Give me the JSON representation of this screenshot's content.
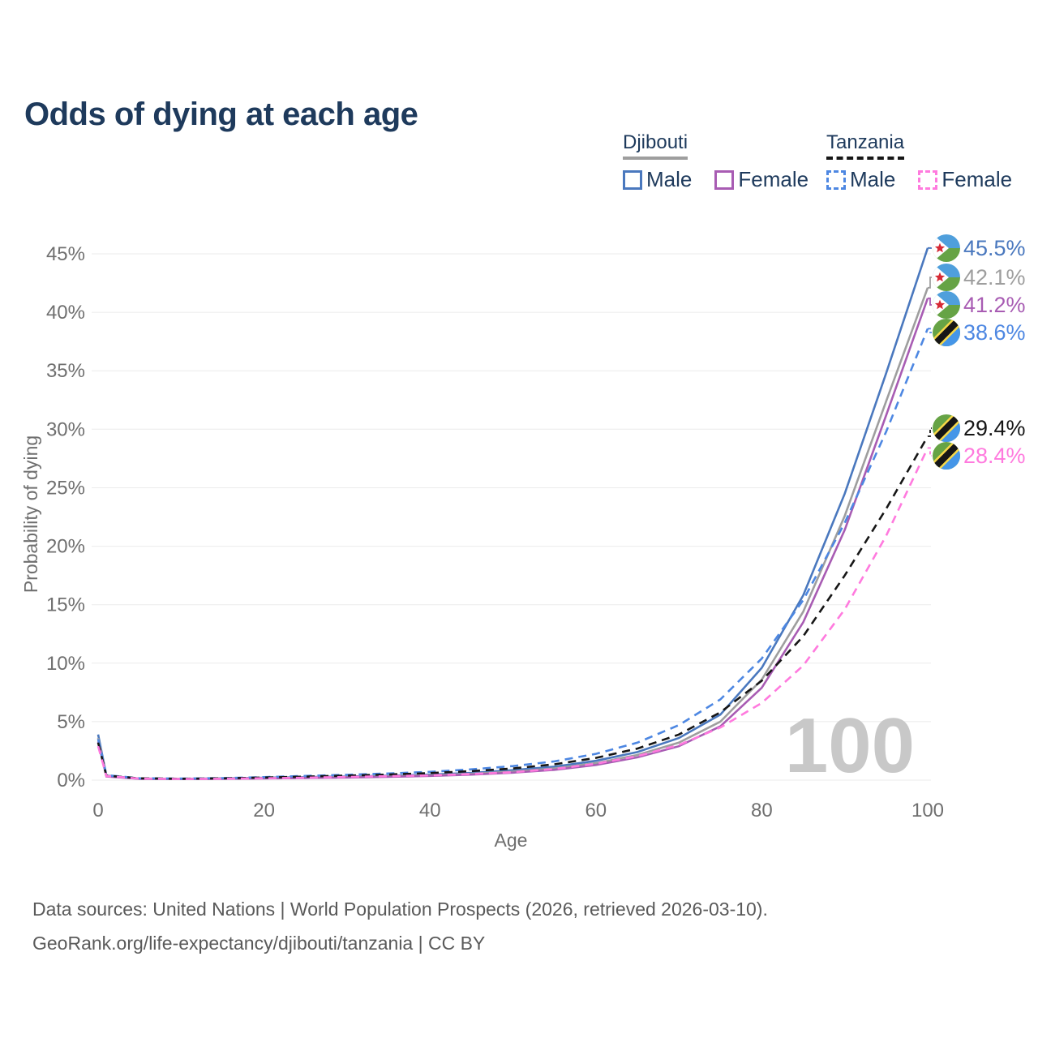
{
  "title": "Odds of dying at each age",
  "legend": {
    "groups": [
      {
        "country": "Djibouti",
        "underline_color": "#9e9e9e",
        "underline_style": "solid",
        "items": [
          {
            "label": "Male",
            "color": "#4a78be",
            "dashed": false
          },
          {
            "label": "Female",
            "color": "#a85cb3",
            "dashed": false
          }
        ]
      },
      {
        "country": "Tanzania",
        "underline_color": "#161616",
        "underline_style": "dashed",
        "items": [
          {
            "label": "Male",
            "color": "#4d87e2",
            "dashed": true
          },
          {
            "label": "Female",
            "color": "#ff7ade",
            "dashed": true
          }
        ]
      }
    ]
  },
  "chart_data": {
    "type": "line",
    "title": "Odds of dying at each age",
    "xlabel": "Age",
    "ylabel": "Probability of dying",
    "xlim": [
      0,
      100
    ],
    "ylim_percent": [
      0,
      47
    ],
    "x_ticks": [
      0,
      20,
      40,
      60,
      80,
      100
    ],
    "y_ticks_percent": [
      0,
      5,
      10,
      15,
      20,
      25,
      30,
      35,
      40,
      45
    ],
    "grid": "horizontal",
    "legend_position": "top-right",
    "x": [
      0,
      1,
      5,
      10,
      15,
      20,
      25,
      30,
      35,
      40,
      45,
      50,
      55,
      60,
      65,
      70,
      75,
      80,
      85,
      90,
      95,
      100
    ],
    "series": [
      {
        "id": "djibouti-male",
        "country": "Djibouti",
        "sex": "Male",
        "line_style": "solid",
        "color": "#4a78be",
        "flag": "djibouti",
        "end_label": "45.5%",
        "values_percent": [
          3.9,
          0.38,
          0.13,
          0.11,
          0.15,
          0.21,
          0.26,
          0.31,
          0.38,
          0.47,
          0.62,
          0.85,
          1.15,
          1.65,
          2.4,
          3.6,
          5.6,
          9.6,
          15.8,
          24.5,
          34.8,
          45.5
        ]
      },
      {
        "id": "djibouti-both",
        "country": "Djibouti",
        "sex": "Both sexes",
        "line_style": "solid",
        "color": "#9e9e9e",
        "flag": "djibouti",
        "end_label": "42.1%",
        "values_percent": [
          3.6,
          0.34,
          0.12,
          0.1,
          0.13,
          0.18,
          0.22,
          0.27,
          0.33,
          0.41,
          0.54,
          0.73,
          1.0,
          1.45,
          2.15,
          3.2,
          5.0,
          8.6,
          14.4,
          22.6,
          32.4,
          42.1
        ]
      },
      {
        "id": "djibouti-female",
        "country": "Djibouti",
        "sex": "Female",
        "line_style": "solid",
        "color": "#a85cb3",
        "flag": "djibouti",
        "end_label": "41.2%",
        "values_percent": [
          3.3,
          0.31,
          0.11,
          0.09,
          0.11,
          0.14,
          0.18,
          0.22,
          0.28,
          0.36,
          0.47,
          0.64,
          0.88,
          1.3,
          1.95,
          2.9,
          4.6,
          7.9,
          13.5,
          21.4,
          31.2,
          41.2
        ]
      },
      {
        "id": "tanzania-male",
        "country": "Tanzania",
        "sex": "Male",
        "line_style": "dashed",
        "color": "#4d87e2",
        "flag": "tanzania",
        "end_label": "38.6%",
        "values_percent": [
          3.5,
          0.42,
          0.16,
          0.13,
          0.17,
          0.26,
          0.36,
          0.46,
          0.57,
          0.71,
          0.92,
          1.2,
          1.6,
          2.25,
          3.2,
          4.7,
          6.9,
          10.4,
          15.4,
          22.0,
          29.8,
          38.6
        ]
      },
      {
        "id": "tanzania-both",
        "country": "Tanzania",
        "sex": "Both sexes",
        "line_style": "dashed",
        "color": "#161616",
        "flag": "tanzania",
        "end_label": "29.4%",
        "values_percent": [
          3.2,
          0.38,
          0.15,
          0.12,
          0.15,
          0.22,
          0.3,
          0.39,
          0.48,
          0.6,
          0.77,
          1.0,
          1.35,
          1.9,
          2.7,
          3.9,
          5.8,
          8.5,
          12.3,
          17.5,
          23.2,
          29.4
        ]
      },
      {
        "id": "tanzania-female",
        "country": "Tanzania",
        "sex": "Female",
        "line_style": "dashed",
        "color": "#ff7ade",
        "flag": "tanzania",
        "end_label": "28.4%",
        "values_percent": [
          2.9,
          0.35,
          0.13,
          0.1,
          0.12,
          0.16,
          0.21,
          0.27,
          0.34,
          0.4,
          0.52,
          0.68,
          0.95,
          1.4,
          2.05,
          3.0,
          4.5,
          6.6,
          9.8,
          14.6,
          20.9,
          28.4
        ]
      }
    ]
  },
  "annotations": {
    "watermark": "100"
  },
  "flag_colors": {
    "djibouti": {
      "top": "#4f9fdc",
      "bottom": "#66a345",
      "triangle": "#ffffff",
      "star": "#d62a35"
    },
    "tanzania": {
      "green": "#66a345",
      "blue": "#4596e8",
      "yellow": "#f8d948",
      "black": "#161616"
    }
  },
  "footer": {
    "line1": "Data sources: United Nations | World Population Prospects (2026, retrieved 2026-03-10).",
    "line2": "GeoRank.org/life-expectancy/djibouti/tanzania | CC BY"
  }
}
